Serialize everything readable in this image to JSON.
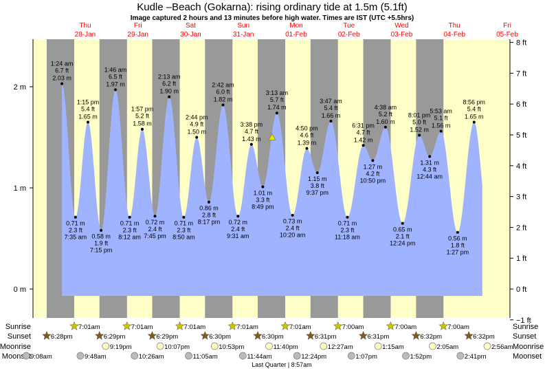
{
  "title": "Kudle –Beach (Gokarna): rising  ordinary tide at 1.5m (5.1ft)",
  "subtitle": "Image captured 2 hours and 13 minutes before high water. Times are IST (UTC +5.5hrs)",
  "colors": {
    "day": "#ffffc8",
    "night": "#999999",
    "water": "#9fb3ff",
    "day_label": "#ff0000",
    "sunrise": "#c8c400",
    "sunset": "#7d5a1e",
    "moonrise": "#ffffc4",
    "moonset": "#bdbbb4"
  },
  "chart_data": {
    "type": "area",
    "title": "Kudle –Beach (Gokarna): rising  ordinary tide at 1.5m (5.1ft)",
    "ylabel_left_unit": "m",
    "ylabel_right_unit": "ft",
    "ylim_m": [
      -0.3,
      2.5
    ],
    "y_ticks_left": [
      "2 m",
      "1 m",
      "0 m"
    ],
    "y_ticks_right": [
      "8 ft",
      "7 ft",
      "6 ft",
      "5 ft",
      "4 ft",
      "3 ft",
      "2 ft",
      "1 ft",
      "0 ft",
      "−1 ft"
    ],
    "days": [
      {
        "dow": "Thu",
        "date": "28-Jan"
      },
      {
        "dow": "Fri",
        "date": "29-Jan"
      },
      {
        "dow": "Sat",
        "date": "30-Jan"
      },
      {
        "dow": "Sun",
        "date": "31-Jan"
      },
      {
        "dow": "Mon",
        "date": "01-Feb"
      },
      {
        "dow": "Tue",
        "date": "02-Feb"
      },
      {
        "dow": "Wed",
        "date": "03-Feb"
      },
      {
        "dow": "Thu",
        "date": "04-Feb"
      },
      {
        "dow": "Fri",
        "date": "05-Feb"
      }
    ],
    "tides": [
      {
        "date": "28-Jan",
        "time": "1:24 am",
        "type": "high",
        "ft": "6.7 ft",
        "m": 2.03
      },
      {
        "date": "28-Jan",
        "time": "7:35 am",
        "type": "low",
        "ft": "2.3 ft",
        "m": 0.71
      },
      {
        "date": "28-Jan",
        "time": "1:15 pm",
        "type": "high",
        "ft": "5.4 ft",
        "m": 1.65
      },
      {
        "date": "28-Jan",
        "time": "7:15 pm",
        "type": "low",
        "ft": "1.9 ft",
        "m": 0.58
      },
      {
        "date": "29-Jan",
        "time": "1:46 am",
        "type": "high",
        "ft": "6.5 ft",
        "m": 1.97
      },
      {
        "date": "29-Jan",
        "time": "8:12 am",
        "type": "low",
        "ft": "2.3 ft",
        "m": 0.71
      },
      {
        "date": "29-Jan",
        "time": "1:57 pm",
        "type": "high",
        "ft": "5.2 ft",
        "m": 1.58
      },
      {
        "date": "29-Jan",
        "time": "7:45 pm",
        "type": "low",
        "ft": "2.4 ft",
        "m": 0.72
      },
      {
        "date": "30-Jan",
        "time": "2:13 am",
        "type": "high",
        "ft": "6.2 ft",
        "m": 1.9
      },
      {
        "date": "30-Jan",
        "time": "8:50 am",
        "type": "low",
        "ft": "2.3 ft",
        "m": 0.71
      },
      {
        "date": "30-Jan",
        "time": "2:44 pm",
        "type": "high",
        "ft": "4.9 ft",
        "m": 1.5
      },
      {
        "date": "30-Jan",
        "time": "8:17 pm",
        "type": "low",
        "ft": "2.8 ft",
        "m": 0.86
      },
      {
        "date": "31-Jan",
        "time": "2:42 am",
        "type": "high",
        "ft": "6.0 ft",
        "m": 1.82
      },
      {
        "date": "31-Jan",
        "time": "9:31 am",
        "type": "low",
        "ft": "2.4 ft",
        "m": 0.72
      },
      {
        "date": "31-Jan",
        "time": "3:38 pm",
        "type": "high",
        "ft": "4.7 ft",
        "m": 1.43
      },
      {
        "date": "31-Jan",
        "time": "8:49 pm",
        "type": "low",
        "ft": "3.3 ft",
        "m": 1.01
      },
      {
        "date": "01-Feb",
        "time": "3:13 am",
        "type": "high",
        "ft": "5.7 ft",
        "m": 1.74
      },
      {
        "date": "01-Feb",
        "time": "10:20 am",
        "type": "low",
        "ft": "2.4 ft",
        "m": 0.73
      },
      {
        "date": "01-Feb",
        "time": "4:50 pm",
        "type": "high",
        "ft": "4.6 ft",
        "m": 1.39
      },
      {
        "date": "01-Feb",
        "time": "9:37 pm",
        "type": "low",
        "ft": "3.8 ft",
        "m": 1.15
      },
      {
        "date": "02-Feb",
        "time": "3:47 am",
        "type": "high",
        "ft": "5.4 ft",
        "m": 1.66
      },
      {
        "date": "02-Feb",
        "time": "11:18 am",
        "type": "low",
        "ft": "2.3 ft",
        "m": 0.71
      },
      {
        "date": "02-Feb",
        "time": "6:31 pm",
        "type": "high",
        "ft": "4.7 ft",
        "m": 1.42
      },
      {
        "date": "02-Feb",
        "time": "10:50 pm",
        "type": "low",
        "ft": "4.2 ft",
        "m": 1.27
      },
      {
        "date": "03-Feb",
        "time": "4:38 am",
        "type": "high",
        "ft": "5.2 ft",
        "m": 1.6
      },
      {
        "date": "03-Feb",
        "time": "12:24 pm",
        "type": "low",
        "ft": "2.1 ft",
        "m": 0.65
      },
      {
        "date": "03-Feb",
        "time": "8:01 pm",
        "type": "high",
        "ft": "5.0 ft",
        "m": 1.52
      },
      {
        "date": "04-Feb",
        "time": "12:44 am",
        "type": "low",
        "ft": "4.3 ft",
        "m": 1.31
      },
      {
        "date": "04-Feb",
        "time": "5:53 am",
        "type": "high",
        "ft": "5.1 ft",
        "m": 1.56
      },
      {
        "date": "04-Feb",
        "time": "1:27 pm",
        "type": "low",
        "ft": "1.8 ft",
        "m": 0.56
      },
      {
        "date": "04-Feb",
        "time": "8:56 pm",
        "type": "high",
        "ft": "5.4 ft",
        "m": 1.65
      }
    ],
    "current": {
      "date": "01-Feb",
      "time": "1:00 am",
      "m": 1.5
    }
  },
  "almanac": {
    "labels": {
      "sunrise": "Sunrise",
      "sunset": "Sunset",
      "moonrise": "Moonrise",
      "moonset": "Moonset"
    },
    "sunrise": [
      {
        "date": "28-Jan",
        "time": "7:01am"
      },
      {
        "date": "29-Jan",
        "time": "7:01am"
      },
      {
        "date": "30-Jan",
        "time": "7:01am"
      },
      {
        "date": "31-Jan",
        "time": "7:01am"
      },
      {
        "date": "01-Feb",
        "time": "7:01am"
      },
      {
        "date": "02-Feb",
        "time": "7:00am"
      },
      {
        "date": "03-Feb",
        "time": "7:00am"
      },
      {
        "date": "04-Feb",
        "time": "7:00am"
      }
    ],
    "sunset": [
      {
        "date": "27-Jan",
        "time": "6:28pm"
      },
      {
        "date": "28-Jan",
        "time": "6:29pm"
      },
      {
        "date": "29-Jan",
        "time": "6:29pm"
      },
      {
        "date": "30-Jan",
        "time": "6:30pm"
      },
      {
        "date": "31-Jan",
        "time": "6:30pm"
      },
      {
        "date": "01-Feb",
        "time": "6:31pm"
      },
      {
        "date": "02-Feb",
        "time": "6:31pm"
      },
      {
        "date": "03-Feb",
        "time": "6:32pm"
      },
      {
        "date": "04-Feb",
        "time": "6:32pm"
      }
    ],
    "moonrise": [
      {
        "date": "28-Jan",
        "time": "9:19pm"
      },
      {
        "date": "29-Jan",
        "time": "10:07pm"
      },
      {
        "date": "30-Jan",
        "time": "10:53pm"
      },
      {
        "date": "31-Jan",
        "time": "11:40pm"
      },
      {
        "date": "02-Feb",
        "time": "12:27am"
      },
      {
        "date": "03-Feb",
        "time": "1:15am"
      },
      {
        "date": "04-Feb",
        "time": "2:05am"
      },
      {
        "date": "05-Feb",
        "time": "2:56am"
      }
    ],
    "moonset": [
      {
        "date": "27-Jan",
        "time": "9:08am"
      },
      {
        "date": "28-Jan",
        "time": "9:48am"
      },
      {
        "date": "29-Jan",
        "time": "10:26am"
      },
      {
        "date": "30-Jan",
        "time": "11:05am"
      },
      {
        "date": "31-Jan",
        "time": "11:44am"
      },
      {
        "date": "01-Feb",
        "time": "12:24pm"
      },
      {
        "date": "02-Feb",
        "time": "1:07pm"
      },
      {
        "date": "03-Feb",
        "time": "1:52pm"
      },
      {
        "date": "04-Feb",
        "time": "2:41pm"
      }
    ],
    "moon_phase": "Last Quarter | 8:57am"
  }
}
